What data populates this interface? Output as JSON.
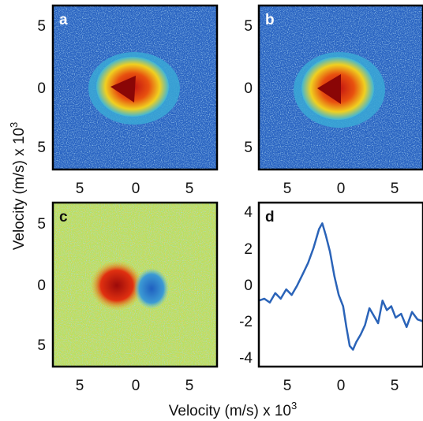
{
  "figure": {
    "xlabel": "Velocity (m/s) x 10",
    "xlabel_exp": "3",
    "ylabel": "Velocity (m/s) x 10",
    "ylabel_exp": "3"
  },
  "chart_data": [
    {
      "panel": "a",
      "type": "heatmap",
      "description_colormap": "jet",
      "xlim": [
        -7.5,
        7.5
      ],
      "ylim": [
        -7.5,
        7.5
      ],
      "xticks": [],
      "yticks": [
        "5",
        "0",
        "5"
      ],
      "label_color": "#ffffff"
    },
    {
      "panel": "b",
      "type": "heatmap",
      "xlim": [
        -7.5,
        7.5
      ],
      "ylim": [
        -7.5,
        7.5
      ],
      "xticks": [
        "5",
        "0",
        "5"
      ],
      "yticks": [
        "5",
        "0",
        "5"
      ],
      "label_color": "#ffffff"
    },
    {
      "panel": "c",
      "type": "heatmap",
      "xlim": [
        -7.5,
        7.5
      ],
      "ylim": [
        -7.5,
        7.5
      ],
      "xticks": [
        "5",
        "0",
        "5"
      ],
      "yticks": [
        "5",
        "0",
        "5"
      ],
      "label_color": "#111111"
    },
    {
      "panel": "d",
      "type": "line",
      "xlim": [
        -7.5,
        7.5
      ],
      "ylim": [
        -4.5,
        4.2
      ],
      "xticks": [
        "5",
        "0",
        "5"
      ],
      "yticks": [
        "4",
        "2",
        "0",
        "-2",
        "-4"
      ],
      "label_color": "#111111",
      "series_color": "#2a63b8",
      "series": [
        {
          "x": [
            -7.5,
            -7.0,
            -6.5,
            -6.0,
            -5.5,
            -5.0,
            -4.5,
            -4.0,
            -3.5,
            -3.0,
            -2.5,
            -2.0,
            -1.7,
            -1.4,
            -1.0,
            -0.6,
            -0.2,
            0.2,
            0.5,
            0.8,
            1.1,
            1.4,
            1.8,
            2.2,
            2.6,
            3.0,
            3.4,
            3.8,
            4.2,
            4.6,
            5.0,
            5.5,
            6.0,
            6.5,
            7.0,
            7.5
          ],
          "y": [
            -1.0,
            -0.9,
            -1.1,
            -0.6,
            -0.9,
            -0.4,
            -0.7,
            -0.2,
            0.4,
            1.0,
            1.8,
            2.8,
            3.1,
            2.5,
            1.6,
            0.3,
            -0.7,
            -1.3,
            -2.4,
            -3.4,
            -3.6,
            -3.2,
            -2.8,
            -2.3,
            -1.4,
            -1.8,
            -2.2,
            -1.0,
            -1.5,
            -1.3,
            -1.9,
            -1.7,
            -2.4,
            -1.6,
            -2.0,
            -2.1
          ]
        }
      ]
    }
  ]
}
